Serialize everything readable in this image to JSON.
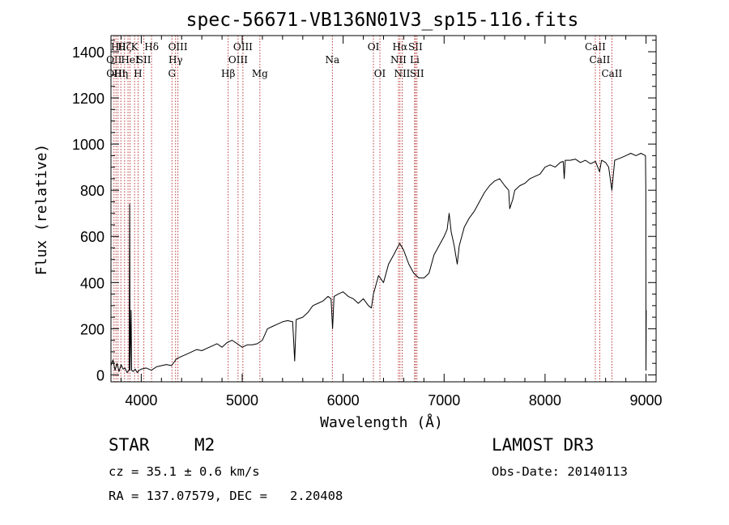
{
  "chart_data": {
    "type": "line",
    "title": "spec-56671-VB136N01V3_sp15-116.fits",
    "xlabel": "Wavelength (Å)",
    "ylabel": "Flux (relative)",
    "xlim": [
      3700,
      9100
    ],
    "ylim": [
      -30,
      1470
    ],
    "x_ticks": [
      4000,
      5000,
      6000,
      7000,
      8000,
      9000
    ],
    "y_ticks": [
      0,
      200,
      400,
      600,
      800,
      1000,
      1200,
      1400
    ],
    "grid": false,
    "series": [
      {
        "name": "flux",
        "points": [
          [
            3700,
            40
          ],
          [
            3720,
            65
          ],
          [
            3740,
            20
          ],
          [
            3760,
            50
          ],
          [
            3780,
            15
          ],
          [
            3800,
            45
          ],
          [
            3820,
            25
          ],
          [
            3840,
            30
          ],
          [
            3860,
            10
          ],
          [
            3880,
            20
          ],
          [
            3885,
            740
          ],
          [
            3889,
            20
          ],
          [
            3900,
            280
          ],
          [
            3905,
            20
          ],
          [
            3920,
            15
          ],
          [
            3940,
            25
          ],
          [
            3960,
            10
          ],
          [
            3980,
            20
          ],
          [
            4000,
            25
          ],
          [
            4050,
            30
          ],
          [
            4100,
            20
          ],
          [
            4150,
            35
          ],
          [
            4200,
            40
          ],
          [
            4250,
            45
          ],
          [
            4300,
            40
          ],
          [
            4350,
            70
          ],
          [
            4400,
            80
          ],
          [
            4450,
            90
          ],
          [
            4500,
            100
          ],
          [
            4550,
            110
          ],
          [
            4600,
            105
          ],
          [
            4650,
            115
          ],
          [
            4700,
            125
          ],
          [
            4750,
            135
          ],
          [
            4800,
            120
          ],
          [
            4850,
            140
          ],
          [
            4900,
            150
          ],
          [
            4950,
            135
          ],
          [
            5000,
            120
          ],
          [
            5050,
            130
          ],
          [
            5100,
            130
          ],
          [
            5150,
            135
          ],
          [
            5200,
            150
          ],
          [
            5250,
            200
          ],
          [
            5300,
            210
          ],
          [
            5350,
            220
          ],
          [
            5400,
            230
          ],
          [
            5450,
            235
          ],
          [
            5500,
            230
          ],
          [
            5520,
            60
          ],
          [
            5535,
            240
          ],
          [
            5600,
            250
          ],
          [
            5650,
            270
          ],
          [
            5700,
            300
          ],
          [
            5750,
            310
          ],
          [
            5800,
            320
          ],
          [
            5850,
            340
          ],
          [
            5880,
            330
          ],
          [
            5895,
            200
          ],
          [
            5910,
            340
          ],
          [
            5950,
            350
          ],
          [
            6000,
            360
          ],
          [
            6050,
            340
          ],
          [
            6100,
            330
          ],
          [
            6150,
            310
          ],
          [
            6200,
            330
          ],
          [
            6250,
            300
          ],
          [
            6280,
            290
          ],
          [
            6300,
            350
          ],
          [
            6350,
            430
          ],
          [
            6400,
            400
          ],
          [
            6450,
            480
          ],
          [
            6500,
            520
          ],
          [
            6560,
            570
          ],
          [
            6600,
            540
          ],
          [
            6650,
            480
          ],
          [
            6700,
            440
          ],
          [
            6750,
            420
          ],
          [
            6800,
            420
          ],
          [
            6850,
            440
          ],
          [
            6900,
            520
          ],
          [
            6950,
            560
          ],
          [
            7000,
            600
          ],
          [
            7030,
            630
          ],
          [
            7050,
            700
          ],
          [
            7070,
            620
          ],
          [
            7100,
            560
          ],
          [
            7130,
            480
          ],
          [
            7150,
            560
          ],
          [
            7200,
            640
          ],
          [
            7250,
            680
          ],
          [
            7300,
            710
          ],
          [
            7350,
            750
          ],
          [
            7400,
            790
          ],
          [
            7450,
            820
          ],
          [
            7500,
            840
          ],
          [
            7550,
            850
          ],
          [
            7600,
            820
          ],
          [
            7640,
            800
          ],
          [
            7650,
            720
          ],
          [
            7680,
            760
          ],
          [
            7700,
            800
          ],
          [
            7750,
            820
          ],
          [
            7800,
            830
          ],
          [
            7850,
            850
          ],
          [
            7900,
            860
          ],
          [
            7950,
            870
          ],
          [
            8000,
            900
          ],
          [
            8050,
            910
          ],
          [
            8100,
            900
          ],
          [
            8150,
            920
          ],
          [
            8180,
            925
          ],
          [
            8190,
            850
          ],
          [
            8200,
            930
          ],
          [
            8250,
            930
          ],
          [
            8300,
            935
          ],
          [
            8350,
            920
          ],
          [
            8400,
            930
          ],
          [
            8450,
            915
          ],
          [
            8500,
            925
          ],
          [
            8540,
            880
          ],
          [
            8560,
            930
          ],
          [
            8600,
            920
          ],
          [
            8630,
            900
          ],
          [
            8662,
            800
          ],
          [
            8690,
            930
          ],
          [
            8750,
            940
          ],
          [
            8800,
            950
          ],
          [
            8850,
            960
          ],
          [
            8900,
            950
          ],
          [
            8950,
            960
          ],
          [
            8995,
            950
          ],
          [
            8998,
            800
          ],
          [
            9000,
            20
          ],
          [
            9002,
            280
          ]
        ]
      }
    ],
    "spectral_lines": [
      {
        "wave": 3730,
        "label": "OII",
        "row": 2
      },
      {
        "wave": 3750,
        "label": "OIII",
        "row": 3
      },
      {
        "wave": 3770,
        "label": "Hθ",
        "row": 1
      },
      {
        "wave": 3798,
        "label": "Hη",
        "row": 3
      },
      {
        "wave": 3835,
        "label": "Hζ",
        "row": 1
      },
      {
        "wave": 3869,
        "label": "",
        "row": 0
      },
      {
        "wave": 3889,
        "label": "HeI",
        "row": 2
      },
      {
        "wave": 3934,
        "label": "K",
        "row": 1
      },
      {
        "wave": 3968,
        "label": "H",
        "row": 3
      },
      {
        "wave": 4026,
        "label": "SII",
        "row": 2
      },
      {
        "wave": 4102,
        "label": "Hδ",
        "row": 1
      },
      {
        "wave": 4304,
        "label": "G",
        "row": 3
      },
      {
        "wave": 4340,
        "label": "Hγ",
        "row": 2
      },
      {
        "wave": 4363,
        "label": "OIII",
        "row": 1
      },
      {
        "wave": 4861,
        "label": "Hβ",
        "row": 3
      },
      {
        "wave": 4959,
        "label": "OIII",
        "row": 2
      },
      {
        "wave": 5007,
        "label": "OIII",
        "row": 1
      },
      {
        "wave": 5175,
        "label": "Mg",
        "row": 3
      },
      {
        "wave": 5893,
        "label": "Na",
        "row": 2
      },
      {
        "wave": 6300,
        "label": "OI",
        "row": 1
      },
      {
        "wave": 6364,
        "label": "OI",
        "row": 3
      },
      {
        "wave": 6548,
        "label": "NII",
        "row": 2
      },
      {
        "wave": 6563,
        "label": "Hα",
        "row": 1
      },
      {
        "wave": 6584,
        "label": "NII",
        "row": 3
      },
      {
        "wave": 6708,
        "label": "Li",
        "row": 2
      },
      {
        "wave": 6716,
        "label": "SII",
        "row": 1
      },
      {
        "wave": 6731,
        "label": "SII",
        "row": 3
      },
      {
        "wave": 8498,
        "label": "CaII",
        "row": 1
      },
      {
        "wave": 8542,
        "label": "CaII",
        "row": 2
      },
      {
        "wave": 8662,
        "label": "CaII",
        "row": 3
      }
    ]
  },
  "info": {
    "object_type": "STAR",
    "subclass": "M2",
    "survey": "LAMOST DR3",
    "redshift": "cz = 35.1 ± 0.6 km/s",
    "obs_date": "Obs-Date: 20140113",
    "coords": "RA = 137.07579, DEC =   2.20408"
  },
  "colors": {
    "axis": "#000000",
    "spectrum": "#000000",
    "line_marker": "#b22222"
  }
}
